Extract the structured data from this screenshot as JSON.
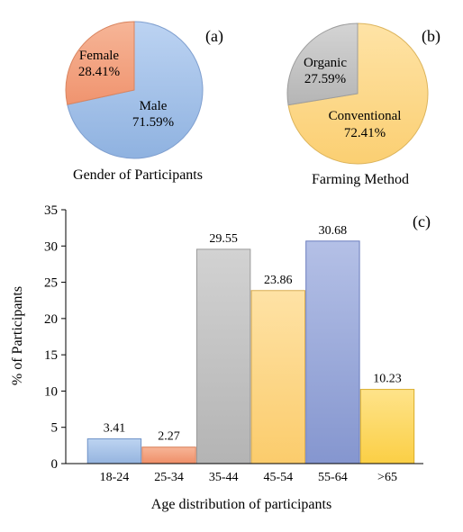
{
  "chart_data": [
    {
      "panel": "(a)",
      "type": "pie",
      "title": "Gender of Participants",
      "categories": [
        "Male",
        "Female"
      ],
      "values": [
        71.59,
        28.41
      ],
      "labels": [
        "71.59%",
        "28.41%"
      ],
      "colors": [
        "#a4c2e9",
        "#f4a27f"
      ]
    },
    {
      "panel": "(b)",
      "type": "pie",
      "title": "Farming Method",
      "categories": [
        "Conventional",
        "Organic"
      ],
      "values": [
        72.41,
        27.59
      ],
      "labels": [
        "72.41%",
        "27.59%"
      ],
      "colors": [
        "#fdd98a",
        "#c6c6c6"
      ]
    },
    {
      "panel": "(c)",
      "type": "bar",
      "categories": [
        "18-24",
        "25-34",
        "35-44",
        "45-54",
        "55-64",
        ">65"
      ],
      "values": [
        3.41,
        2.27,
        29.55,
        23.86,
        30.68,
        10.23
      ],
      "value_labels": [
        "3.41",
        "2.27",
        "29.55",
        "23.86",
        "30.68",
        "10.23"
      ],
      "xlabel": "Age distribution of participants",
      "ylabel": "% of Participants",
      "ylim": [
        0,
        35
      ],
      "yticks": [
        "0",
        "5",
        "10",
        "15",
        "20",
        "25",
        "30",
        "35"
      ],
      "grid": false,
      "colors": [
        "#a9c6ea",
        "#f4a07c",
        "#c8c8c8",
        "#fdd88c",
        "#9dacdc",
        "#fdd760"
      ]
    }
  ]
}
